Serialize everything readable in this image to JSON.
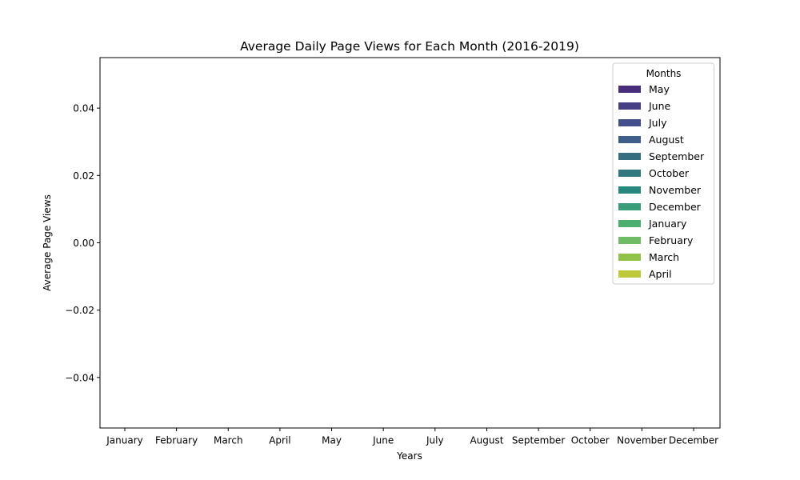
{
  "chart_data": {
    "type": "bar",
    "title": "Average Daily Page Views for Each Month (2016-2019)",
    "xlabel": "Years",
    "ylabel": "Average Page Views",
    "categories": [
      "January",
      "February",
      "March",
      "April",
      "May",
      "June",
      "July",
      "August",
      "September",
      "October",
      "November",
      "December"
    ],
    "ylim": [
      -0.055,
      0.055
    ],
    "yticks": [
      -0.04,
      -0.02,
      0.0,
      0.02,
      0.04
    ],
    "ytick_labels": [
      "−0.04",
      "−0.02",
      "0.00",
      "0.02",
      "0.04"
    ],
    "grid": false,
    "legend": {
      "title": "Months",
      "placement": "top-right",
      "entries": [
        {
          "name": "May",
          "color": "#472d7b"
        },
        {
          "name": "June",
          "color": "#463f85"
        },
        {
          "name": "July",
          "color": "#424f8c"
        },
        {
          "name": "August",
          "color": "#3f5d8a"
        },
        {
          "name": "September",
          "color": "#356e7e"
        },
        {
          "name": "October",
          "color": "#2f797e"
        },
        {
          "name": "November",
          "color": "#26877c"
        },
        {
          "name": "December",
          "color": "#389c79"
        },
        {
          "name": "January",
          "color": "#4aaf6e"
        },
        {
          "name": "February",
          "color": "#6ebd64"
        },
        {
          "name": "March",
          "color": "#8fc247"
        },
        {
          "name": "April",
          "color": "#bdc93a"
        }
      ]
    },
    "series": []
  }
}
